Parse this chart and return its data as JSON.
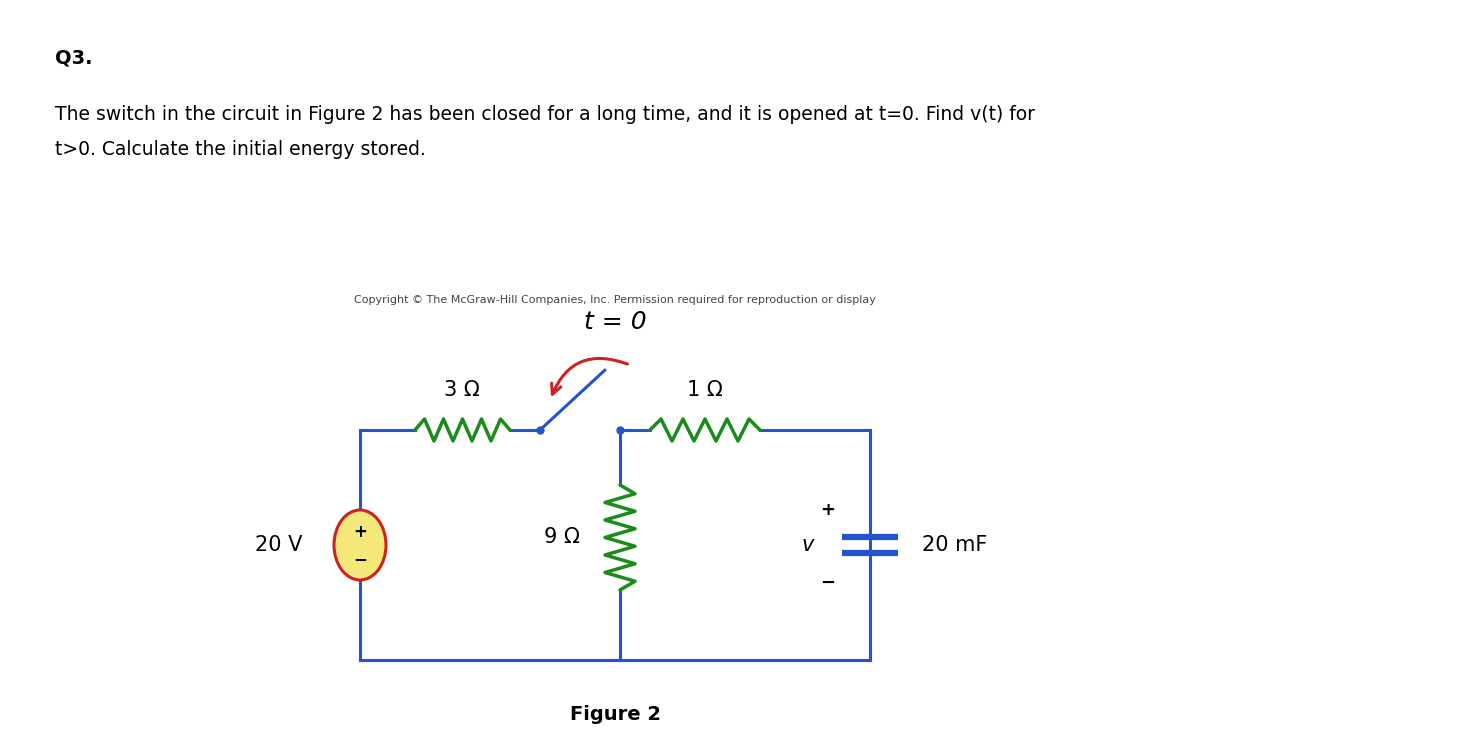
{
  "background_color": "#ffffff",
  "title_q3": "Q3.",
  "problem_text_line1": "The switch in the circuit in Figure 2 has been closed for a long time, and it is opened at t=0. Find v(t) for",
  "problem_text_line2": "t>0. Calculate the initial energy stored.",
  "copyright_text": "Copyright © The McGraw-Hill Companies, Inc. Permission required for reproduction or display",
  "figure_label": "Figure 2",
  "circuit_wire_color": "#2255cc",
  "resistor_color": "#1a8c1a",
  "switch_line_color": "#2255cc",
  "switch_arrow_color": "#cc2222",
  "voltage_source_fill": "#f5e87a",
  "voltage_source_border": "#cc2222",
  "text_color": "#000000",
  "label_3ohm": "3 Ω",
  "label_1ohm": "1 Ω",
  "label_9ohm": "9 Ω",
  "label_20V": "20 V",
  "label_20mF": "20 mF",
  "label_v": "v",
  "label_t0": "t = 0",
  "font_size_q3": 14,
  "font_size_problem": 13.5,
  "font_size_copyright": 8,
  "font_size_circuit": 15,
  "font_size_figure": 14
}
